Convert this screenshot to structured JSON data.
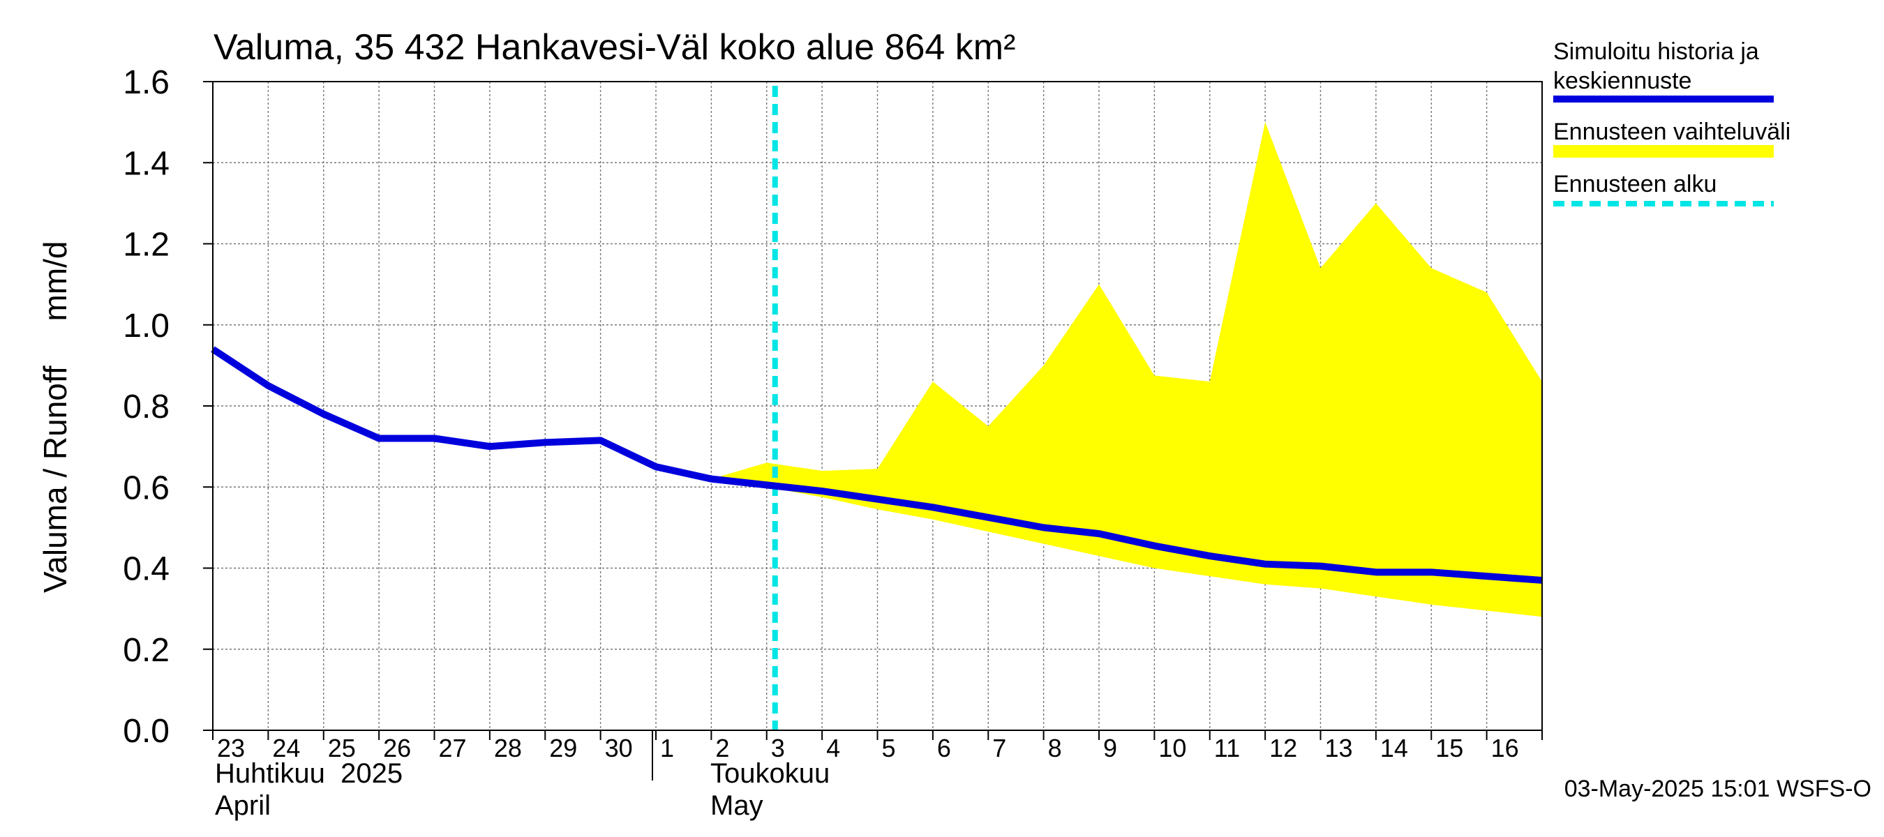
{
  "chart_data": {
    "type": "line",
    "title": "Valuma, 35 432 Hankavesi-Väl koko alue 864 km²",
    "ylabel": "Valuma / Runoff     mm/d",
    "ylim": [
      0.0,
      1.6
    ],
    "yticks": [
      "0.0",
      "0.2",
      "0.4",
      "0.6",
      "0.8",
      "1.0",
      "1.2",
      "1.4",
      "1.6"
    ],
    "grid": true,
    "x_day_labels": [
      "23",
      "24",
      "25",
      "26",
      "27",
      "28",
      "29",
      "30",
      "1",
      "2",
      "3",
      "4",
      "5",
      "6",
      "7",
      "8",
      "9",
      "10",
      "11",
      "12",
      "13",
      "14",
      "15",
      "16"
    ],
    "month_labels": [
      {
        "fi": "Huhtikuu  2025",
        "en": "April"
      },
      {
        "fi": "Toukokuu",
        "en": "May"
      }
    ],
    "forecast_start": "2025-05-03",
    "series": [
      {
        "name": "Simuloitu historia ja keskiennuste",
        "color": "#0000dd",
        "dates": [
          "2025-04-23",
          "2025-04-24",
          "2025-04-25",
          "2025-04-26",
          "2025-04-27",
          "2025-04-28",
          "2025-04-29",
          "2025-04-30",
          "2025-05-01",
          "2025-05-02",
          "2025-05-03",
          "2025-05-04",
          "2025-05-05",
          "2025-05-06",
          "2025-05-07",
          "2025-05-08",
          "2025-05-09",
          "2025-05-10",
          "2025-05-11",
          "2025-05-12",
          "2025-05-13",
          "2025-05-14",
          "2025-05-15",
          "2025-05-16",
          "2025-05-17"
        ],
        "values": [
          0.94,
          0.85,
          0.78,
          0.72,
          0.72,
          0.7,
          0.71,
          0.715,
          0.65,
          0.62,
          0.605,
          0.59,
          0.57,
          0.55,
          0.525,
          0.5,
          0.485,
          0.455,
          0.43,
          0.41,
          0.405,
          0.39,
          0.39,
          0.38,
          0.37
        ]
      },
      {
        "name": "Ennusteen vaihteluväli",
        "color": "#ffff00",
        "dates": [
          "2025-05-02",
          "2025-05-03",
          "2025-05-04",
          "2025-05-05",
          "2025-05-06",
          "2025-05-07",
          "2025-05-08",
          "2025-05-09",
          "2025-05-10",
          "2025-05-11",
          "2025-05-12",
          "2025-05-13",
          "2025-05-14",
          "2025-05-15",
          "2025-05-16",
          "2025-05-17"
        ],
        "upper": [
          0.62,
          0.66,
          0.64,
          0.645,
          0.86,
          0.75,
          0.9,
          1.1,
          0.875,
          0.86,
          1.5,
          1.14,
          1.3,
          1.14,
          1.08,
          0.86
        ],
        "lower": [
          0.62,
          0.6,
          0.575,
          0.545,
          0.52,
          0.49,
          0.46,
          0.43,
          0.4,
          0.38,
          0.36,
          0.35,
          0.33,
          0.31,
          0.295,
          0.28
        ]
      },
      {
        "name": "Ennusteen alku",
        "color": "#00e5e5",
        "date": "2025-05-03"
      }
    ],
    "legend_position": "right"
  },
  "footer": {
    "timestamp": "03-May-2025 15:01 WSFS-O"
  }
}
